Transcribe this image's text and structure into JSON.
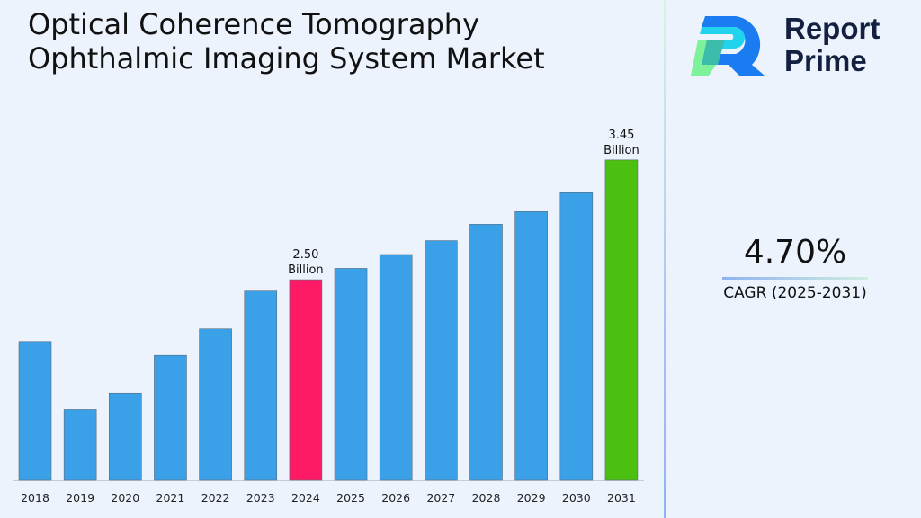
{
  "title_line1": "Optical Coherence Tomography",
  "title_line2": "Ophthalmic Imaging System Market",
  "logo": {
    "line1": "Report",
    "line2": "Prime"
  },
  "cagr": {
    "value": "4.70%",
    "label": "CAGR (2025-2031)"
  },
  "colors": {
    "default": "#3aa0e8",
    "highlight_2024": "#ff1a66",
    "highlight_2031": "#4cc010",
    "background": "#ecf3fd"
  },
  "chart_data": {
    "type": "bar",
    "title": "",
    "xlabel": "",
    "ylabel": "",
    "grid": false,
    "ylim": [
      0.91,
      3.72
    ],
    "categories": [
      "2018",
      "2019",
      "2020",
      "2021",
      "2022",
      "2023",
      "2024",
      "2025",
      "2026",
      "2027",
      "2028",
      "2029",
      "2030",
      "2031"
    ],
    "values": [
      2.01,
      1.47,
      1.6,
      1.9,
      2.11,
      2.41,
      2.5,
      2.59,
      2.7,
      2.81,
      2.94,
      3.04,
      3.19,
      3.45
    ],
    "data_labels": {
      "2024": [
        "2.50",
        "Billion"
      ],
      "2031": [
        "3.45",
        "Billion"
      ]
    }
  }
}
